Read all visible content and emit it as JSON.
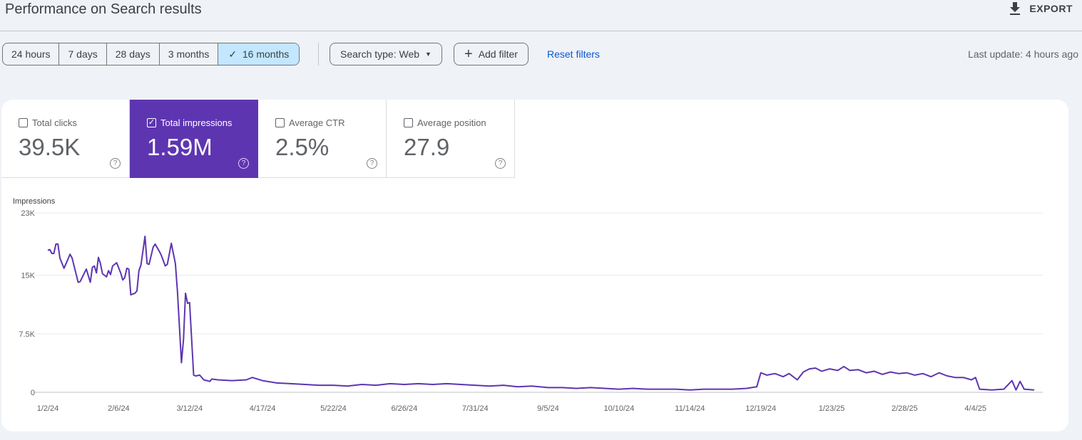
{
  "header": {
    "title": "Performance on Search results",
    "export_label": "EXPORT",
    "export_icon": "download-icon"
  },
  "filters": {
    "ranges": [
      "24 hours",
      "7 days",
      "28 days",
      "3 months",
      "16 months"
    ],
    "selected_range": "16 months",
    "search_type": "Search type: Web",
    "add_filter": "Add filter",
    "reset": "Reset filters",
    "last_update": "Last update: 4 hours ago"
  },
  "metrics": [
    {
      "label": "Total clicks",
      "value": "39.5K",
      "checked": false
    },
    {
      "label": "Total impressions",
      "value": "1.59M",
      "checked": true
    },
    {
      "label": "Average CTR",
      "value": "2.5%",
      "checked": false
    },
    {
      "label": "Average position",
      "value": "27.9",
      "checked": false
    }
  ],
  "colors": {
    "accent": "#5e35b1",
    "link": "#0b57d0",
    "selected_chip": "#c2e7ff"
  },
  "chart_data": {
    "type": "line",
    "ylabel": "Impressions",
    "ylim": [
      0,
      23000
    ],
    "yticks": [
      "0",
      "7.5K",
      "15K",
      "23K"
    ],
    "ytick_values": [
      0,
      7500,
      15000,
      23000
    ],
    "xticks": [
      "1/2/24",
      "2/6/24",
      "3/12/24",
      "4/17/24",
      "5/22/24",
      "6/26/24",
      "7/31/24",
      "9/5/24",
      "10/10/24",
      "11/14/24",
      "12/19/24",
      "1/23/25",
      "2/28/25",
      "4/4/25"
    ],
    "grid": true,
    "series": [
      {
        "color": "#5e35b1",
        "points": [
          [
            "2024-01-02",
            18200
          ],
          [
            "2024-01-03",
            18300
          ],
          [
            "2024-01-04",
            17800
          ],
          [
            "2024-01-05",
            17800
          ],
          [
            "2024-01-06",
            19000
          ],
          [
            "2024-01-07",
            19000
          ],
          [
            "2024-01-08",
            17200
          ],
          [
            "2024-01-10",
            15900
          ],
          [
            "2024-01-11",
            16500
          ],
          [
            "2024-01-13",
            17700
          ],
          [
            "2024-01-14",
            17200
          ],
          [
            "2024-01-17",
            14100
          ],
          [
            "2024-01-18",
            14200
          ],
          [
            "2024-01-21",
            15800
          ],
          [
            "2024-01-23",
            14100
          ],
          [
            "2024-01-24",
            16000
          ],
          [
            "2024-01-25",
            16200
          ],
          [
            "2024-01-26",
            15300
          ],
          [
            "2024-01-27",
            17300
          ],
          [
            "2024-01-28",
            16500
          ],
          [
            "2024-01-29",
            15200
          ],
          [
            "2024-01-31",
            14800
          ],
          [
            "2024-02-01",
            15600
          ],
          [
            "2024-02-02",
            15100
          ],
          [
            "2024-02-03",
            16200
          ],
          [
            "2024-02-05",
            16600
          ],
          [
            "2024-02-07",
            15300
          ],
          [
            "2024-02-08",
            14400
          ],
          [
            "2024-02-09",
            14700
          ],
          [
            "2024-02-10",
            15900
          ],
          [
            "2024-02-11",
            15800
          ],
          [
            "2024-02-12",
            12500
          ],
          [
            "2024-02-14",
            12700
          ],
          [
            "2024-02-15",
            13000
          ],
          [
            "2024-02-16",
            15600
          ],
          [
            "2024-02-17",
            16300
          ],
          [
            "2024-02-19",
            20000
          ],
          [
            "2024-02-20",
            16500
          ],
          [
            "2024-02-21",
            16400
          ],
          [
            "2024-02-23",
            18600
          ],
          [
            "2024-02-24",
            19000
          ],
          [
            "2024-02-26",
            18100
          ],
          [
            "2024-02-27",
            17600
          ],
          [
            "2024-02-29",
            16200
          ],
          [
            "2024-03-01",
            16400
          ],
          [
            "2024-03-03",
            19100
          ],
          [
            "2024-03-05",
            16500
          ],
          [
            "2024-03-06",
            12900
          ],
          [
            "2024-03-08",
            3800
          ],
          [
            "2024-03-09",
            6800
          ],
          [
            "2024-03-10",
            12700
          ],
          [
            "2024-03-11",
            11400
          ],
          [
            "2024-03-12",
            11500
          ],
          [
            "2024-03-14",
            2200
          ],
          [
            "2024-03-15",
            2100
          ],
          [
            "2024-03-17",
            2200
          ],
          [
            "2024-03-19",
            1600
          ],
          [
            "2024-03-22",
            1400
          ],
          [
            "2024-03-23",
            1700
          ],
          [
            "2024-03-26",
            1600
          ],
          [
            "2024-04-02",
            1500
          ],
          [
            "2024-04-09",
            1600
          ],
          [
            "2024-04-12",
            1900
          ],
          [
            "2024-04-17",
            1500
          ],
          [
            "2024-04-24",
            1200
          ],
          [
            "2024-05-01",
            1100
          ],
          [
            "2024-05-08",
            1000
          ],
          [
            "2024-05-15",
            900
          ],
          [
            "2024-05-22",
            900
          ],
          [
            "2024-05-29",
            800
          ],
          [
            "2024-06-05",
            1000
          ],
          [
            "2024-06-12",
            900
          ],
          [
            "2024-06-19",
            1100
          ],
          [
            "2024-06-26",
            1000
          ],
          [
            "2024-07-03",
            1100
          ],
          [
            "2024-07-10",
            1000
          ],
          [
            "2024-07-17",
            1100
          ],
          [
            "2024-07-24",
            1000
          ],
          [
            "2024-07-31",
            900
          ],
          [
            "2024-08-07",
            800
          ],
          [
            "2024-08-14",
            900
          ],
          [
            "2024-08-21",
            700
          ],
          [
            "2024-08-28",
            800
          ],
          [
            "2024-09-05",
            600
          ],
          [
            "2024-09-12",
            600
          ],
          [
            "2024-09-19",
            500
          ],
          [
            "2024-09-26",
            600
          ],
          [
            "2024-10-03",
            500
          ],
          [
            "2024-10-10",
            400
          ],
          [
            "2024-10-17",
            500
          ],
          [
            "2024-10-24",
            400
          ],
          [
            "2024-10-31",
            400
          ],
          [
            "2024-11-07",
            400
          ],
          [
            "2024-11-14",
            300
          ],
          [
            "2024-11-21",
            400
          ],
          [
            "2024-11-28",
            400
          ],
          [
            "2024-12-05",
            400
          ],
          [
            "2024-12-12",
            500
          ],
          [
            "2024-12-17",
            700
          ],
          [
            "2024-12-19",
            2500
          ],
          [
            "2024-12-22",
            2200
          ],
          [
            "2024-12-26",
            2400
          ],
          [
            "2024-12-30",
            2000
          ],
          [
            "2025-01-02",
            2400
          ],
          [
            "2025-01-06",
            1600
          ],
          [
            "2025-01-09",
            2600
          ],
          [
            "2025-01-12",
            3000
          ],
          [
            "2025-01-15",
            3100
          ],
          [
            "2025-01-18",
            2700
          ],
          [
            "2025-01-22",
            3000
          ],
          [
            "2025-01-26",
            2800
          ],
          [
            "2025-01-29",
            3300
          ],
          [
            "2025-02-01",
            2800
          ],
          [
            "2025-02-05",
            2900
          ],
          [
            "2025-02-09",
            2500
          ],
          [
            "2025-02-13",
            2700
          ],
          [
            "2025-02-17",
            2300
          ],
          [
            "2025-02-21",
            2600
          ],
          [
            "2025-02-25",
            2400
          ],
          [
            "2025-03-01",
            2500
          ],
          [
            "2025-03-05",
            2200
          ],
          [
            "2025-03-09",
            2400
          ],
          [
            "2025-03-13",
            2000
          ],
          [
            "2025-03-17",
            2500
          ],
          [
            "2025-03-21",
            2100
          ],
          [
            "2025-03-25",
            1900
          ],
          [
            "2025-03-29",
            1900
          ],
          [
            "2025-04-02",
            1600
          ],
          [
            "2025-04-04",
            1900
          ],
          [
            "2025-04-06",
            400
          ],
          [
            "2025-04-12",
            300
          ],
          [
            "2025-04-18",
            400
          ],
          [
            "2025-04-22",
            1500
          ],
          [
            "2025-04-24",
            300
          ],
          [
            "2025-04-26",
            1400
          ],
          [
            "2025-04-28",
            400
          ],
          [
            "2025-05-03",
            300
          ]
        ]
      }
    ]
  }
}
